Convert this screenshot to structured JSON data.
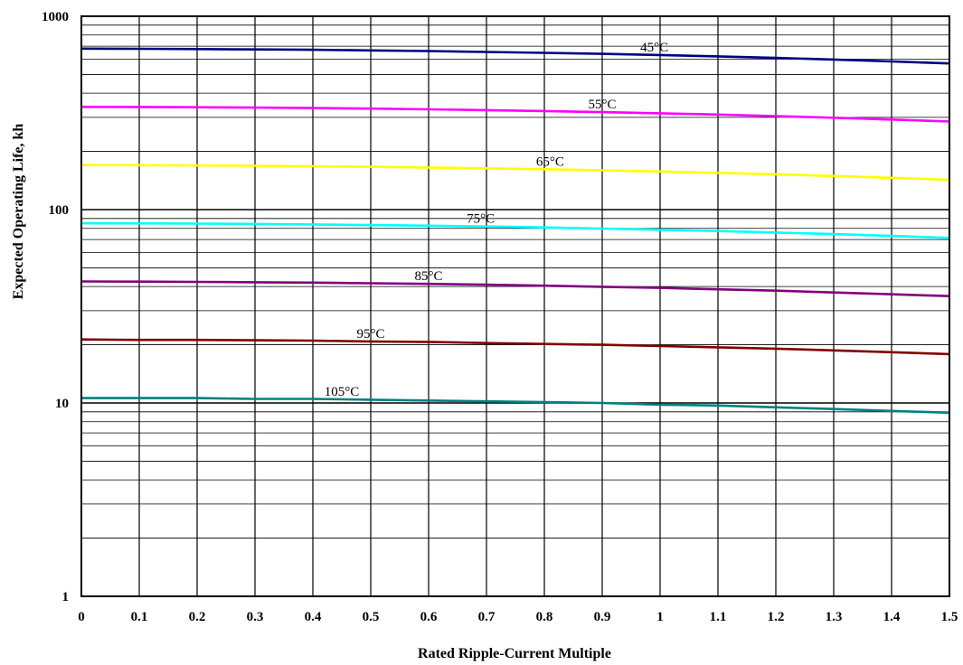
{
  "chart_data": {
    "type": "line",
    "title": "",
    "xlabel": "Rated Ripple-Current Multiple",
    "ylabel": "Expected Operating Life, kh",
    "x_scale": "linear",
    "y_scale": "log",
    "xlim": [
      0,
      1.5
    ],
    "ylim": [
      1,
      1000
    ],
    "grid": true,
    "legend": "none",
    "x_ticks": [
      "0",
      "0.1",
      "0.2",
      "0.3",
      "0.4",
      "0.5",
      "0.6",
      "0.7",
      "0.8",
      "0.9",
      "1",
      "1.1",
      "1.2",
      "1.3",
      "1.4",
      "1.5"
    ],
    "y_ticks": [
      "1",
      "10",
      "100",
      "1000"
    ],
    "x": [
      0,
      0.1,
      0.2,
      0.3,
      0.4,
      0.5,
      0.6,
      0.7,
      0.8,
      0.9,
      1.0,
      1.1,
      1.2,
      1.3,
      1.4,
      1.5
    ],
    "series": [
      {
        "name": "45°C",
        "color": "#000080",
        "label_x": 0.99,
        "values": [
          680,
          679,
          677,
          674,
          671,
          666,
          661,
          654,
          647,
          639,
          630,
          620,
          609,
          597,
          584,
          570
        ]
      },
      {
        "name": "55°C",
        "color": "#FF00FF",
        "label_x": 0.9,
        "values": [
          340,
          339.6,
          338.5,
          337.1,
          335.3,
          333,
          330.3,
          327.1,
          323.5,
          319.4,
          314.9,
          310,
          304.6,
          298.6,
          292.3,
          285.5
        ]
      },
      {
        "name": "65°C",
        "color": "#FFFF00",
        "label_x": 0.81,
        "values": [
          170,
          169.8,
          169.3,
          168.5,
          167.6,
          166.5,
          165.1,
          163.5,
          161.7,
          159.7,
          157.4,
          155,
          152.3,
          149.3,
          146.1,
          142.7
        ]
      },
      {
        "name": "75°C",
        "color": "#00FFFF",
        "label_x": 0.69,
        "values": [
          85,
          84.9,
          84.6,
          84.3,
          83.8,
          83.2,
          82.6,
          81.8,
          80.9,
          79.8,
          78.7,
          77.5,
          76.1,
          74.7,
          73.1,
          71.4
        ]
      },
      {
        "name": "85°C",
        "color": "#800080",
        "label_x": 0.6,
        "values": [
          42.5,
          42.4,
          42.3,
          42.1,
          41.9,
          41.6,
          41.3,
          40.9,
          40.4,
          39.9,
          39.4,
          38.7,
          38.1,
          37.3,
          36.5,
          35.7
        ]
      },
      {
        "name": "95°C",
        "color": "#800000",
        "label_x": 0.5,
        "values": [
          21.3,
          21.2,
          21.2,
          21.1,
          21,
          20.8,
          20.7,
          20.4,
          20.2,
          20,
          19.7,
          19.4,
          19.1,
          18.7,
          18.3,
          17.9
        ]
      },
      {
        "name": "105°C",
        "color": "#008080",
        "label_x": 0.45,
        "values": [
          10.6,
          10.6,
          10.6,
          10.5,
          10.5,
          10.4,
          10.3,
          10.2,
          10.1,
          10,
          9.8,
          9.7,
          9.5,
          9.3,
          9.1,
          8.9
        ]
      }
    ]
  }
}
